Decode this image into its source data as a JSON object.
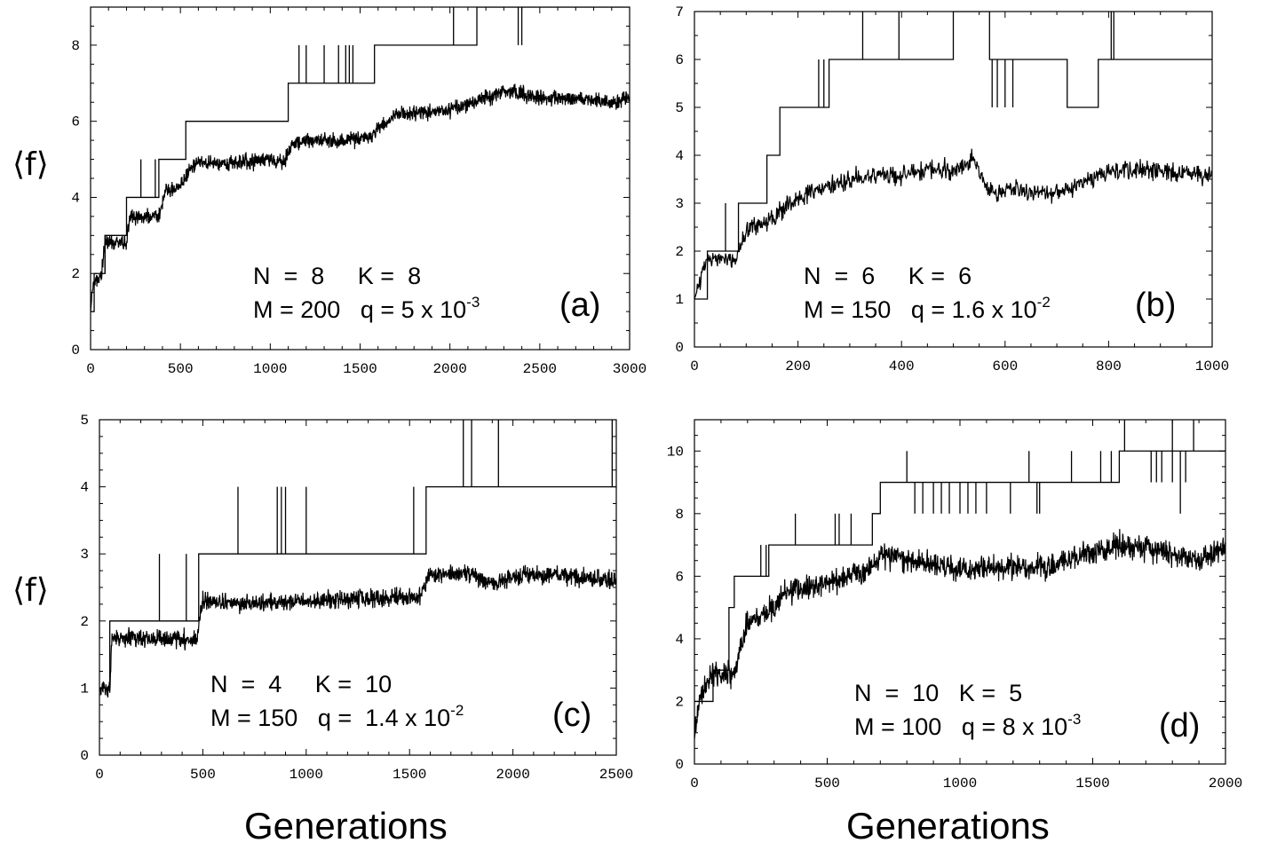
{
  "figure": {
    "ylabel": "⟨f⟩",
    "xlabel": "Generations"
  },
  "chart_data": [
    {
      "panel": "(a)",
      "type": "line",
      "xlim": [
        0,
        3000
      ],
      "ylim": [
        0,
        9
      ],
      "xticks": [
        0,
        500,
        1000,
        1500,
        2000,
        2500,
        3000
      ],
      "yticks": [
        0,
        2,
        4,
        6,
        8
      ],
      "xminor": 100,
      "yminor": 0.5,
      "params_line1": "N  =  8     K =  8",
      "params_line2_pre": "M = 200   q = 5 x 10",
      "params_line2_exp": "-3",
      "series": [
        {
          "name": "",
          "kind": "step",
          "x": [
            0,
            20,
            80,
            200,
            380,
            530,
            1100,
            1150,
            1580,
            1700,
            2150,
            3000
          ],
          "y": [
            1,
            2,
            3,
            4,
            5,
            6,
            7,
            7,
            8,
            8,
            9,
            9
          ],
          "spikes": [
            [
              80,
              2,
              3
            ],
            [
              280,
              4,
              5
            ],
            [
              360,
              4,
              5
            ],
            [
              1160,
              7,
              8
            ],
            [
              1200,
              7,
              8
            ],
            [
              1300,
              7,
              8
            ],
            [
              1380,
              7,
              8
            ],
            [
              1420,
              7,
              8
            ],
            [
              1440,
              7,
              8
            ],
            [
              1460,
              7,
              8
            ],
            [
              2020,
              8,
              9
            ],
            [
              2380,
              8,
              9
            ],
            [
              2400,
              8,
              9
            ]
          ]
        },
        {
          "name": "",
          "kind": "noisy",
          "x": [
            0,
            15,
            60,
            80,
            200,
            220,
            380,
            420,
            500,
            560,
            600,
            800,
            1000,
            1080,
            1120,
            1200,
            1400,
            1550,
            1700,
            1800,
            2000,
            2200,
            2300,
            2500,
            2700,
            2900,
            3000
          ],
          "y": [
            1,
            1.8,
            1.9,
            2.8,
            2.8,
            3.5,
            3.5,
            4.2,
            4.3,
            4.8,
            4.9,
            4.9,
            5.0,
            4.9,
            5.4,
            5.5,
            5.5,
            5.6,
            6.2,
            6.2,
            6.3,
            6.6,
            6.8,
            6.6,
            6.6,
            6.5,
            6.6
          ],
          "noise": 0.15,
          "segments": 1800
        }
      ]
    },
    {
      "panel": "(b)",
      "type": "line",
      "xlim": [
        0,
        1000
      ],
      "ylim": [
        0,
        7
      ],
      "xticks": [
        0,
        200,
        400,
        600,
        800,
        1000
      ],
      "yticks": [
        0,
        1,
        2,
        3,
        4,
        5,
        6,
        7
      ],
      "xminor": 50,
      "yminor": 0.5,
      "params_line1": "N  =  6     K =  6",
      "params_line2_pre": "M = 150   q = 1.6 x 10",
      "params_line2_exp": "-2",
      "series": [
        {
          "name": "",
          "kind": "step",
          "x": [
            0,
            25,
            85,
            140,
            165,
            240,
            260,
            500,
            570,
            585,
            720,
            780,
            1000
          ],
          "y": [
            1,
            2,
            3,
            4,
            5,
            5,
            6,
            7,
            6,
            6,
            5,
            6,
            6
          ],
          "spikes": [
            [
              60,
              2,
              3
            ],
            [
              240,
              5,
              6
            ],
            [
              250,
              5,
              6
            ],
            [
              325,
              6,
              7
            ],
            [
              395,
              6,
              7
            ],
            [
              575,
              5,
              6
            ],
            [
              585,
              5,
              6
            ],
            [
              600,
              5,
              6
            ],
            [
              615,
              5,
              6
            ],
            [
              805,
              6,
              7
            ],
            [
              810,
              6,
              7
            ]
          ]
        },
        {
          "name": "",
          "kind": "noisy",
          "x": [
            0,
            25,
            50,
            80,
            100,
            150,
            200,
            250,
            300,
            400,
            460,
            500,
            540,
            570,
            600,
            700,
            750,
            800,
            900,
            1000
          ],
          "y": [
            1,
            1.8,
            1.8,
            1.8,
            2.4,
            2.7,
            3.1,
            3.3,
            3.5,
            3.6,
            3.7,
            3.7,
            3.9,
            3.2,
            3.3,
            3.2,
            3.4,
            3.7,
            3.7,
            3.6
          ],
          "noise": 0.15,
          "segments": 900
        }
      ]
    },
    {
      "panel": "(c)",
      "type": "line",
      "xlim": [
        0,
        2500
      ],
      "ylim": [
        0,
        5
      ],
      "xticks": [
        0,
        500,
        1000,
        1500,
        2000,
        2500
      ],
      "yticks": [
        0,
        1,
        2,
        3,
        4,
        5
      ],
      "xminor": 100,
      "yminor": 0.25,
      "params_line1": "N  =  4     K =  10",
      "params_line2_pre": "M = 150   q =  1.4 x 10",
      "params_line2_exp": "-2",
      "series": [
        {
          "name": "",
          "kind": "step",
          "x": [
            0,
            50,
            480,
            1580,
            2500
          ],
          "y": [
            1,
            2,
            3,
            4,
            4
          ],
          "spikes": [
            [
              290,
              2,
              3
            ],
            [
              420,
              2,
              3
            ],
            [
              670,
              3,
              4
            ],
            [
              860,
              3,
              4
            ],
            [
              880,
              3,
              4
            ],
            [
              900,
              3,
              4
            ],
            [
              1000,
              3,
              4
            ],
            [
              1520,
              3,
              4
            ],
            [
              1760,
              4,
              5
            ],
            [
              1800,
              4,
              5
            ],
            [
              1930,
              4,
              5
            ],
            [
              2480,
              4,
              5
            ]
          ]
        },
        {
          "name": "",
          "kind": "noisy",
          "x": [
            0,
            50,
            60,
            470,
            500,
            700,
            1000,
            1550,
            1600,
            1800,
            1900,
            2000,
            2200,
            2500
          ],
          "y": [
            1,
            1,
            1.75,
            1.72,
            2.3,
            2.25,
            2.3,
            2.35,
            2.7,
            2.7,
            2.55,
            2.65,
            2.7,
            2.6
          ],
          "noise": 0.1,
          "segments": 1600
        }
      ]
    },
    {
      "panel": "(d)",
      "type": "line",
      "xlim": [
        0,
        2000
      ],
      "ylim": [
        0,
        11
      ],
      "xticks": [
        0,
        500,
        1000,
        1500,
        2000
      ],
      "yticks": [
        0,
        2,
        4,
        6,
        8,
        10
      ],
      "xminor": 100,
      "yminor": 0.5,
      "params_line1": "N  =  10   K =  5",
      "params_line2_pre": "M = 100   q = 8 x 10",
      "params_line2_exp": "-3",
      "series": [
        {
          "name": "",
          "kind": "step",
          "x": [
            0,
            20,
            70,
            130,
            150,
            240,
            280,
            360,
            530,
            670,
            700,
            780,
            1200,
            1390,
            1450,
            1600,
            2000
          ],
          "y": [
            2,
            2,
            3,
            5,
            6,
            6,
            7,
            7,
            7,
            8,
            9,
            9,
            9,
            9,
            9,
            10,
            10
          ],
          "spikes": [
            [
              250,
              6,
              7
            ],
            [
              270,
              6,
              7
            ],
            [
              380,
              7,
              8
            ],
            [
              530,
              7,
              8
            ],
            [
              545,
              7,
              8
            ],
            [
              590,
              7,
              8
            ],
            [
              800,
              9,
              10
            ],
            [
              1260,
              9,
              10
            ],
            [
              1420,
              9,
              10
            ],
            [
              1530,
              9,
              10
            ],
            [
              1570,
              9,
              10
            ],
            [
              1620,
              10,
              11
            ],
            [
              1800,
              10,
              11
            ],
            [
              1880,
              10,
              11
            ]
          ],
          "dips": [
            [
              830,
              9,
              8
            ],
            [
              860,
              9,
              8
            ],
            [
              900,
              9,
              8
            ],
            [
              930,
              9,
              8
            ],
            [
              960,
              9,
              8
            ],
            [
              1000,
              9,
              8
            ],
            [
              1030,
              9,
              8
            ],
            [
              1060,
              9,
              8
            ],
            [
              1100,
              9,
              8
            ],
            [
              1190,
              9,
              8
            ],
            [
              1290,
              9,
              8
            ],
            [
              1300,
              9,
              8
            ],
            [
              1720,
              10,
              9
            ],
            [
              1740,
              10,
              9
            ],
            [
              1760,
              10,
              9
            ],
            [
              1800,
              10,
              9
            ],
            [
              1830,
              10,
              8
            ],
            [
              1850,
              10,
              9
            ]
          ]
        },
        {
          "name": "",
          "kind": "noisy",
          "x": [
            0,
            15,
            60,
            150,
            200,
            300,
            350,
            500,
            650,
            700,
            750,
            1000,
            1300,
            1400,
            1600,
            1700,
            1900,
            2000
          ],
          "y": [
            0.8,
            1.9,
            2.8,
            2.9,
            4.5,
            5.0,
            5.5,
            5.8,
            6.2,
            6.6,
            6.6,
            6.2,
            6.3,
            6.5,
            7.0,
            6.9,
            6.5,
            6.9
          ],
          "noise": 0.3,
          "segments": 1400
        }
      ]
    }
  ]
}
